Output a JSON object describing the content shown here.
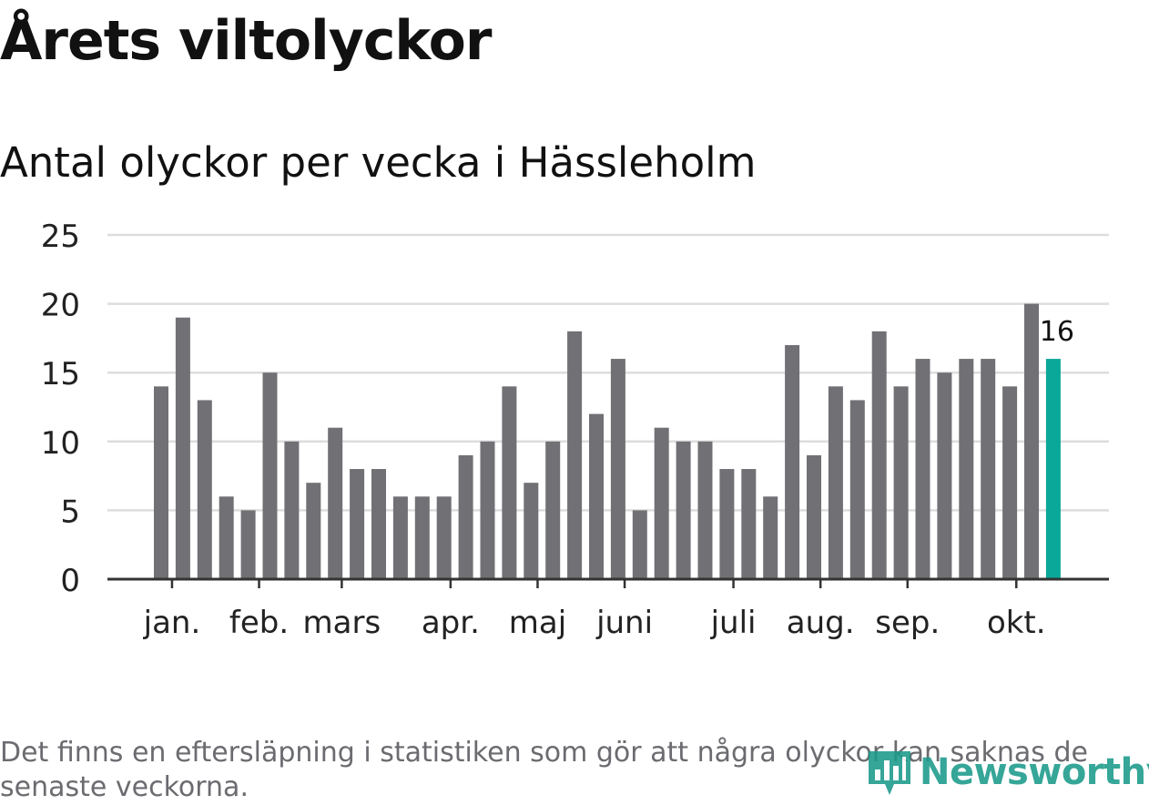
{
  "title": "Årets viltolyckor",
  "subtitle": "Antal olyckor per vecka i Hässleholm",
  "footnote": "Det finns en eftersläpning i statistiken som gör att några olyckor kan saknas de senaste veckorna.",
  "brand": "Newsworthy",
  "colors": {
    "bar": "#707075",
    "highlight": "#0aa898",
    "grid": "#dddddd",
    "axis": "#333333",
    "brand": "#1a9a8a"
  },
  "chart_data": {
    "type": "bar",
    "title": "Antal olyckor per vecka i Hässleholm",
    "xlabel": "",
    "ylabel": "",
    "ylim": [
      0,
      25
    ],
    "yticks": [
      "0",
      "5",
      "10",
      "15",
      "20",
      "25"
    ],
    "values": [
      14,
      19,
      13,
      6,
      5,
      15,
      10,
      7,
      11,
      8,
      8,
      6,
      6,
      6,
      9,
      10,
      14,
      7,
      10,
      18,
      12,
      16,
      5,
      11,
      10,
      10,
      8,
      8,
      6,
      17,
      9,
      14,
      13,
      18,
      14,
      16,
      15,
      16,
      16,
      14,
      20,
      16
    ],
    "highlight_index": 41,
    "highlight_label": "16",
    "month_labels": [
      {
        "label": "jan.",
        "index": 0.5
      },
      {
        "label": "feb.",
        "index": 4.5
      },
      {
        "label": "mars",
        "index": 8.3
      },
      {
        "label": "apr.",
        "index": 13.3
      },
      {
        "label": "maj",
        "index": 17.3
      },
      {
        "label": "juni",
        "index": 21.3
      },
      {
        "label": "juli",
        "index": 26.3
      },
      {
        "label": "aug.",
        "index": 30.3
      },
      {
        "label": "sep.",
        "index": 34.3
      },
      {
        "label": "okt.",
        "index": 39.3
      }
    ]
  }
}
